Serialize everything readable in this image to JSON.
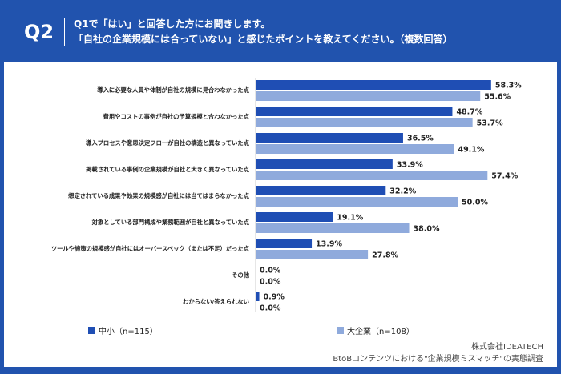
{
  "header": {
    "q": "Q2",
    "line1": "Q1で「はい」と回答した方にお聞きします。",
    "line2": "「自社の企業規模には合っていない」と感じたポイントを教えてください。（複数回答）"
  },
  "colors": {
    "frame": "#2153ae",
    "sme": "#1f4eb4",
    "large": "#8faadc"
  },
  "chart_data": {
    "type": "bar",
    "orientation": "horizontal",
    "xlim": [
      0,
      60
    ],
    "grid": false,
    "legend": "bottom",
    "categories": [
      "導入に必要な人員や体制が自社の規模に見合わなかった点",
      "費用やコストの事例が自社の予算規模と合わなかった点",
      "導入プロセスや意思決定フローが自社の構造と異なっていた点",
      "掲載されている事例の企業規模が自社と大きく異なっていた点",
      "想定されている成果や効果の規模感が自社には当てはまらなかった点",
      "対象としている部門構成や業務範囲が自社と異なっていた点",
      "ツールや施策の規模感が自社にはオーバースペック（または不足）だった点",
      "その他",
      "わからない/答えられない"
    ],
    "series": [
      {
        "name": "中小（n=115）",
        "values": [
          58.3,
          48.7,
          36.5,
          33.9,
          32.2,
          19.1,
          13.9,
          0.0,
          0.9
        ]
      },
      {
        "name": "大企業（n=108）",
        "values": [
          55.6,
          53.7,
          49.1,
          57.4,
          50.0,
          38.0,
          27.8,
          0.0,
          0.0
        ]
      }
    ]
  },
  "source": {
    "company": "株式会社IDEATECH",
    "survey": "BtoBコンテンツにおける\"企業規模ミスマッチ\"の実態調査"
  }
}
